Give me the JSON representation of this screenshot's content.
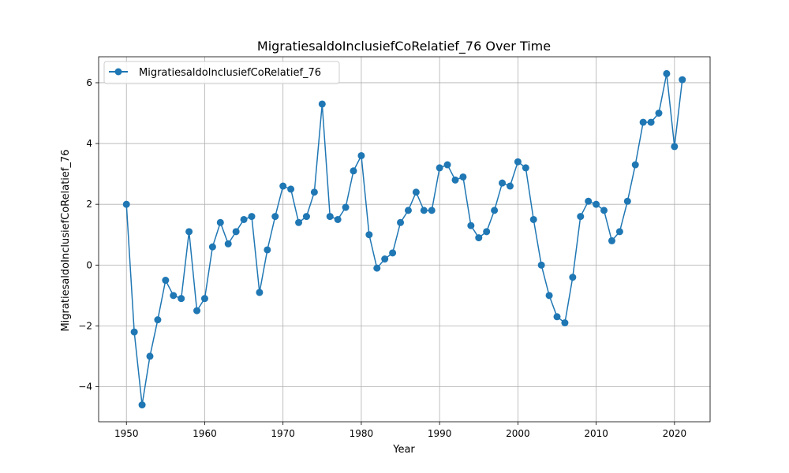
{
  "chart_data": {
    "type": "line",
    "title": "MigratiesaldoInclusiefCoRelatief_76 Over Time",
    "xlabel": "Year",
    "ylabel": "MigratiesaldoInclusiefCoRelatief_76",
    "xlim": [
      1946.45,
      2024.55
    ],
    "ylim": [
      -5.155,
      6.855
    ],
    "x_ticks": [
      1950,
      1960,
      1970,
      1980,
      1990,
      2000,
      2010,
      2020
    ],
    "y_ticks": [
      -4,
      -2,
      0,
      2,
      4,
      6
    ],
    "y_tick_labels": [
      "−4",
      "−2",
      "0",
      "2",
      "4",
      "6"
    ],
    "grid": true,
    "legend_position": "top-left",
    "color": "#1f77b4",
    "series": [
      {
        "name": "MigratiesaldoInclusiefCoRelatief_76",
        "x": [
          1950,
          1951,
          1952,
          1953,
          1954,
          1955,
          1956,
          1957,
          1958,
          1959,
          1960,
          1961,
          1962,
          1963,
          1964,
          1965,
          1966,
          1967,
          1968,
          1969,
          1970,
          1971,
          1972,
          1973,
          1974,
          1975,
          1976,
          1977,
          1978,
          1979,
          1980,
          1981,
          1982,
          1983,
          1984,
          1985,
          1986,
          1987,
          1988,
          1989,
          1990,
          1991,
          1992,
          1993,
          1994,
          1995,
          1996,
          1997,
          1998,
          1999,
          2000,
          2001,
          2002,
          2003,
          2004,
          2005,
          2006,
          2007,
          2008,
          2009,
          2010,
          2011,
          2012,
          2013,
          2014,
          2015,
          2016,
          2017,
          2018,
          2019,
          2020,
          2021
        ],
        "values": [
          2.0,
          -2.2,
          -4.6,
          -3.0,
          -1.8,
          -0.5,
          -1.0,
          -1.1,
          1.1,
          -1.5,
          -1.1,
          0.6,
          1.4,
          0.7,
          1.1,
          1.5,
          1.6,
          -0.9,
          0.5,
          1.6,
          2.6,
          2.5,
          1.4,
          1.6,
          2.4,
          5.3,
          1.6,
          1.5,
          1.9,
          3.1,
          3.6,
          1.0,
          -0.1,
          0.2,
          0.4,
          1.4,
          1.8,
          2.4,
          1.8,
          1.8,
          3.2,
          3.3,
          2.8,
          2.9,
          1.3,
          0.9,
          1.1,
          1.8,
          2.7,
          2.6,
          3.4,
          3.2,
          1.5,
          0.0,
          -1.0,
          -1.7,
          -1.9,
          -0.4,
          1.6,
          2.1,
          2.0,
          1.8,
          0.8,
          1.1,
          2.1,
          3.3,
          4.7,
          4.7,
          5.0,
          6.3,
          3.9,
          6.1
        ]
      }
    ]
  }
}
